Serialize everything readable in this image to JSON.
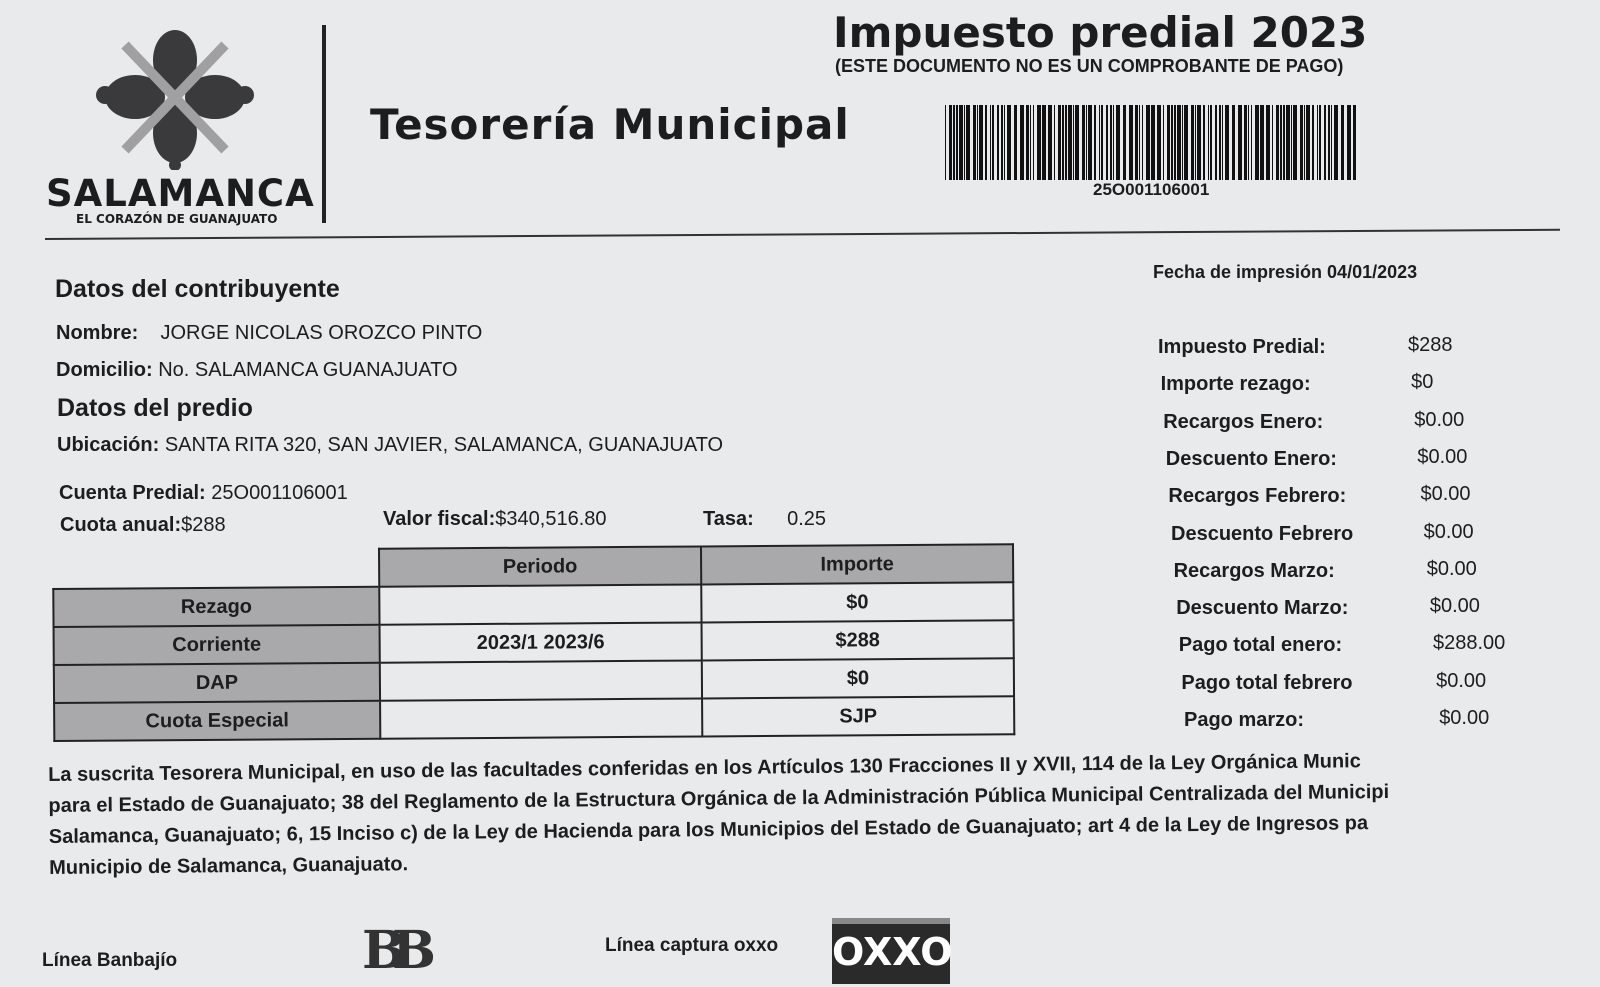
{
  "header": {
    "brand": "SALAMANCA",
    "slogan": "EL CORAZÓN DE GUANAJUATO",
    "department": "Tesorería Municipal",
    "title": "Impuesto predial 2023",
    "disclaimer": "(ESTE DOCUMENTO NO ES UN COMPROBANTE DE PAGO)",
    "barcode_number": "25O001106001"
  },
  "print_date": "Fecha de impresión 04/01/2023",
  "contribuyente": {
    "heading": "Datos del contribuyente",
    "nombre_label": "Nombre:",
    "nombre": "JORGE NICOLAS OROZCO PINTO",
    "domicilio_label": "Domicilio:",
    "domicilio": "No. SALAMANCA GUANAJUATO"
  },
  "predio": {
    "heading": "Datos del predio",
    "ubicacion_label": "Ubicación:",
    "ubicacion": "SANTA RITA 320, SAN JAVIER, SALAMANCA, GUANAJUATO",
    "cuenta_label": "Cuenta Predial:",
    "cuenta": "25O001106001",
    "cuota_label": "Cuota anual:",
    "cuota": "$288",
    "valor_label": "Valor fiscal:",
    "valor": "$340,516.80",
    "tasa_label": "Tasa:",
    "tasa": "0.25"
  },
  "table": {
    "headers": [
      "Periodo",
      "Importe"
    ],
    "rows": [
      {
        "concepto": "Rezago",
        "periodo": "",
        "importe": "$0"
      },
      {
        "concepto": "Corriente",
        "periodo": "2023/1 2023/6",
        "importe": "$288"
      },
      {
        "concepto": "DAP",
        "periodo": "",
        "importe": "$0"
      },
      {
        "concepto": "Cuota Especial",
        "periodo": "",
        "importe": "SJP"
      }
    ]
  },
  "summary": [
    {
      "label": "Impuesto Predial:",
      "value": "$288"
    },
    {
      "label": "Importe rezago:",
      "value": "$0"
    },
    {
      "label": "Recargos Enero:",
      "value": "$0.00"
    },
    {
      "label": "Descuento Enero:",
      "value": "$0.00"
    },
    {
      "label": "Recargos Febrero:",
      "value": "$0.00"
    },
    {
      "label": "Descuento Febrero",
      "value": "$0.00"
    },
    {
      "label": "Recargos Marzo:",
      "value": "$0.00"
    },
    {
      "label": "Descuento Marzo:",
      "value": "$0.00"
    },
    {
      "label": "Pago total enero:",
      "value": "$288.00"
    },
    {
      "label": "Pago total febrero",
      "value": "$0.00"
    },
    {
      "label": "Pago marzo:",
      "value": "$0.00"
    }
  ],
  "legal_text": [
    "La suscrita Tesorera Municipal, en uso de las facultades conferidas en los Artículos 130 Fracciones II y XVII, 114 de la Ley Orgánica Munic",
    "para el Estado de Guanajuato; 38 del Reglamento de la Estructura Orgánica de la Administración Pública Municipal Centralizada del Municipi",
    "Salamanca, Guanajuato; 6, 15 Inciso c) de la Ley de Hacienda para los Municipios del Estado de Guanajuato; art 4 de la Ley de Ingresos pa",
    "Municipio de Salamanca, Guanajuato."
  ],
  "footer": {
    "banbajio_label": "Línea Banbajío",
    "banbajio_logo": "BB",
    "oxxo_label": "Línea captura oxxo",
    "oxxo_logo": "OXXO"
  }
}
